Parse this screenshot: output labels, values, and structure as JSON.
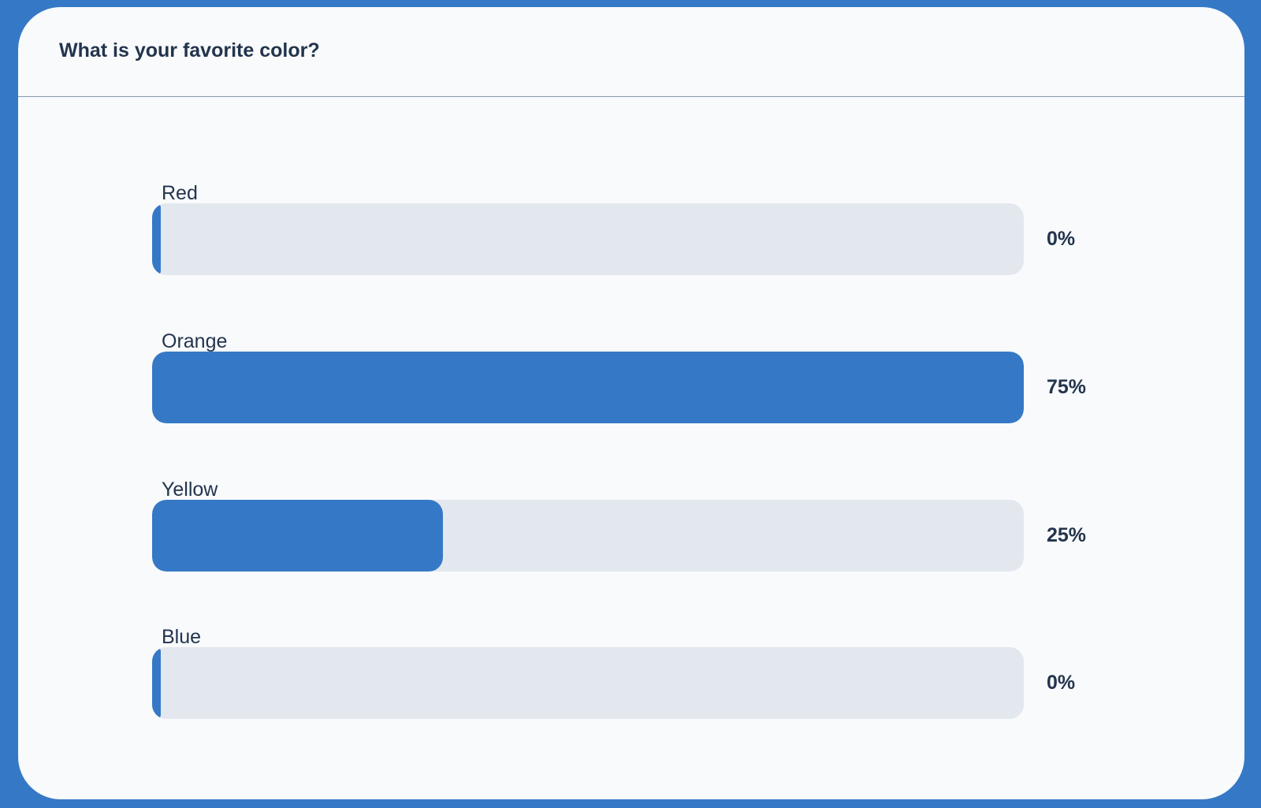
{
  "poll": {
    "question": "What is your favorite color?",
    "options": [
      {
        "label": "Red",
        "percent_label": "0%",
        "value": 0
      },
      {
        "label": "Orange",
        "percent_label": "75%",
        "value": 75
      },
      {
        "label": "Yellow",
        "percent_label": "25%",
        "value": 25
      },
      {
        "label": "Blue",
        "percent_label": "0%",
        "value": 0
      }
    ]
  },
  "colors": {
    "accent": "#3579c6",
    "card_background": "#f8fafc",
    "track": "#e3e8ef",
    "text": "#23344d"
  }
}
